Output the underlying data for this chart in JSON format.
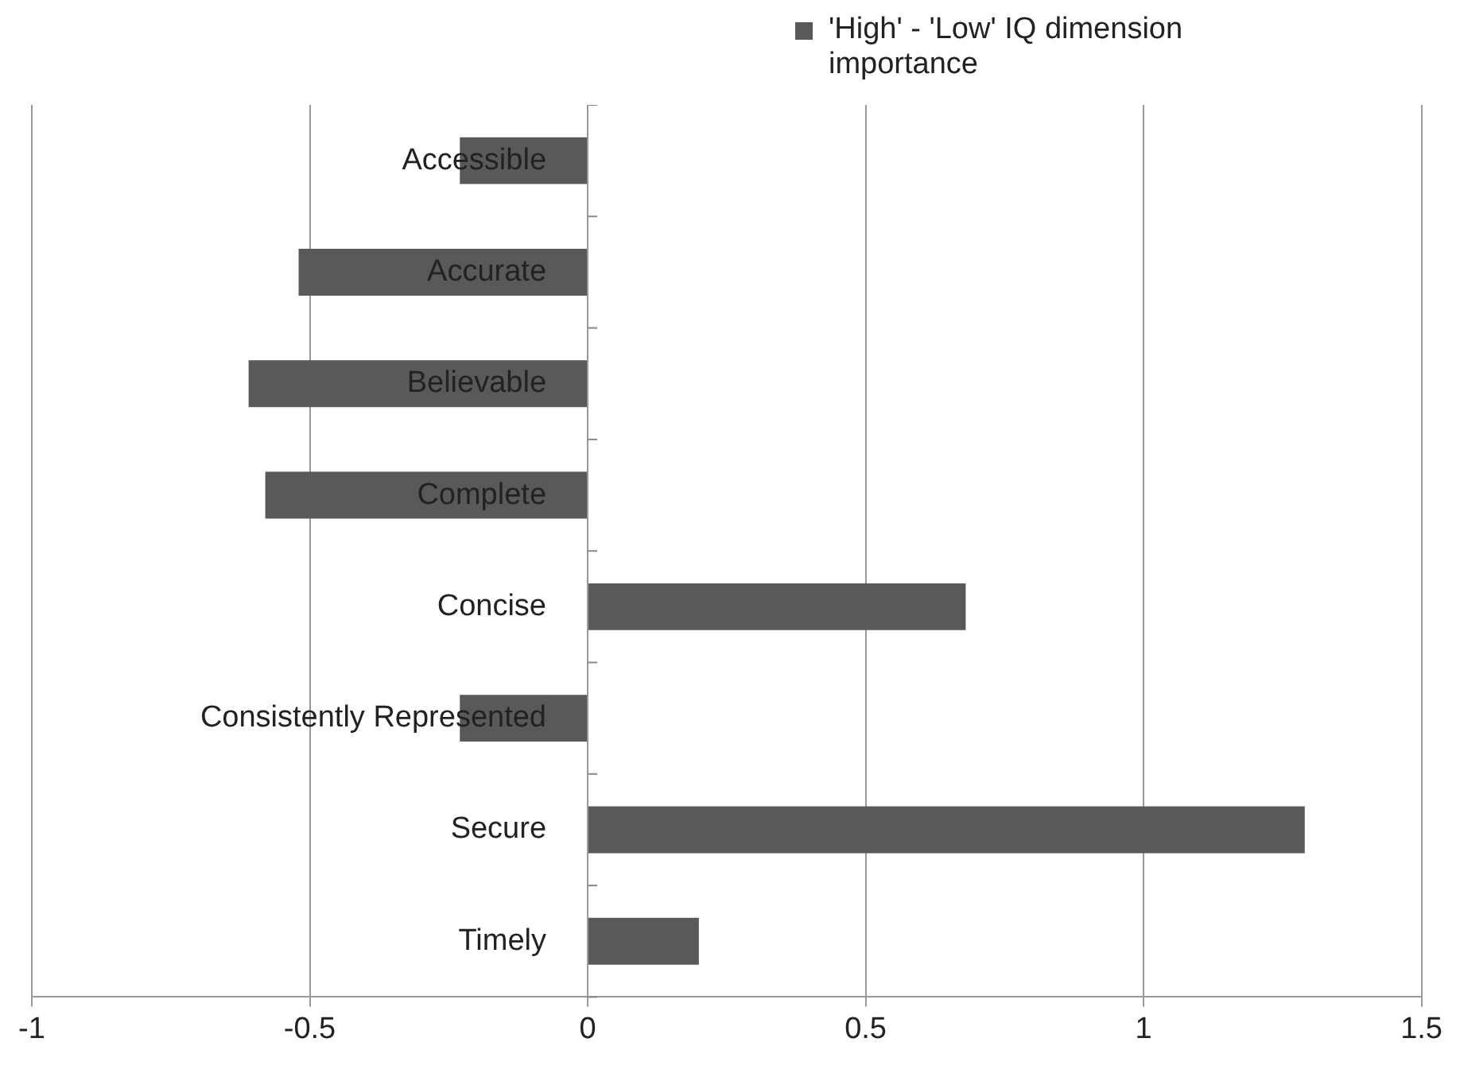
{
  "chart_data": {
    "type": "bar",
    "orientation": "horizontal",
    "categories": [
      "Accessible",
      "Accurate",
      "Believable",
      "Complete",
      "Concise",
      "Consistently Represented",
      "Secure",
      "Timely"
    ],
    "series": [
      {
        "name": "'High' - 'Low' IQ dimension importance",
        "color": "#595959",
        "values": [
          -0.23,
          -0.52,
          -0.61,
          -0.58,
          0.68,
          -0.23,
          1.29,
          0.2
        ]
      }
    ],
    "xlim": [
      -1,
      1.5
    ],
    "xticks": [
      -1,
      -0.5,
      0,
      0.5,
      1,
      1.5
    ],
    "grid": "x",
    "legend": "top right"
  }
}
